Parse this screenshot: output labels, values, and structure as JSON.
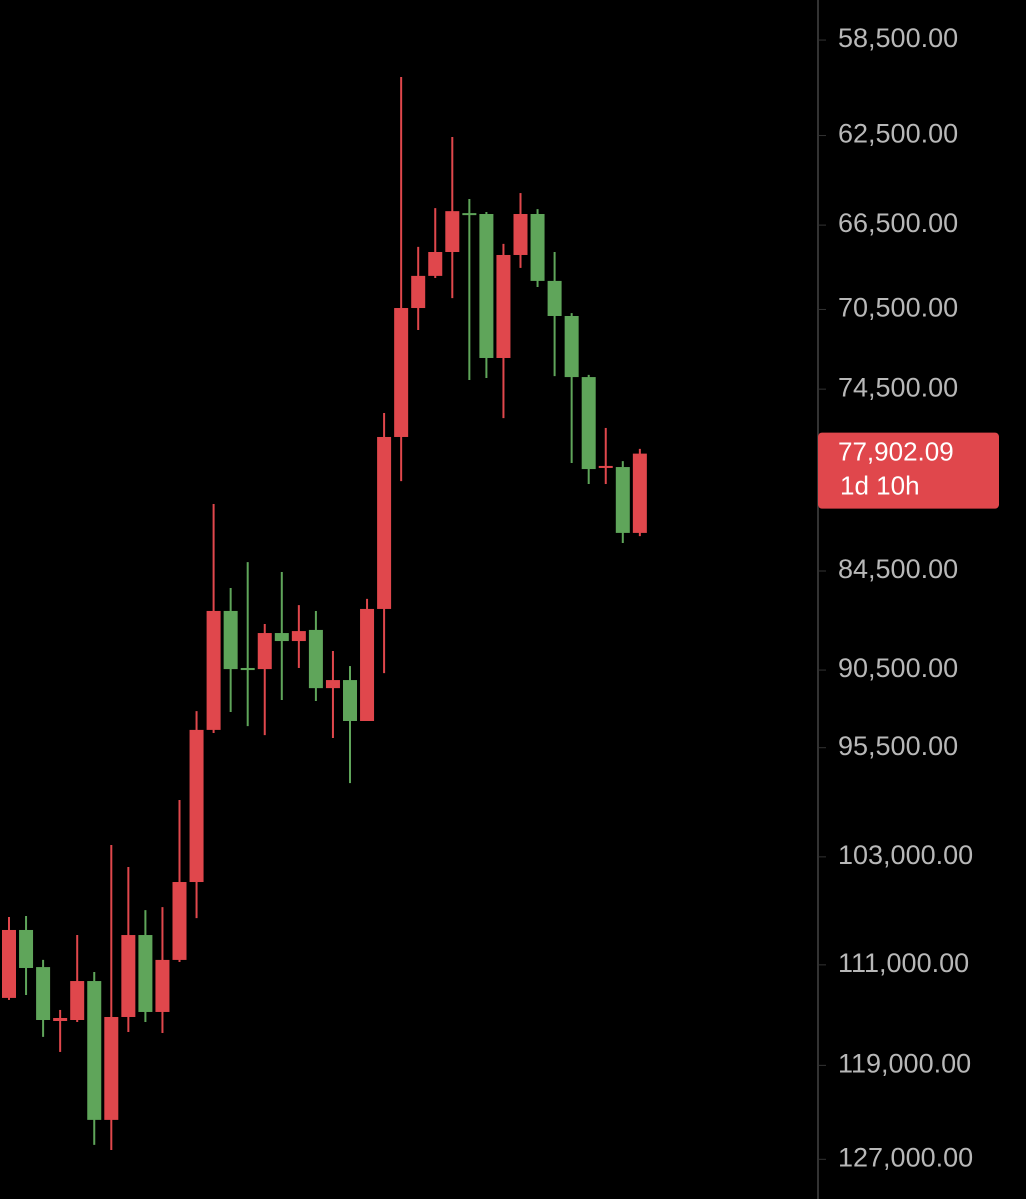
{
  "chart_data": {
    "type": "candlestick",
    "log_scale": true,
    "inverted": true,
    "up_color": "#5fa55a",
    "down_color": "#e0474c",
    "ylim": [
      56900,
      130540
    ],
    "yticks": [
      {
        "value": 58500,
        "label": "58,500.00"
      },
      {
        "value": 62500,
        "label": "62,500.00"
      },
      {
        "value": 66500,
        "label": "66,500.00"
      },
      {
        "value": 70500,
        "label": "70,500.00"
      },
      {
        "value": 74500,
        "label": "74,500.00"
      },
      {
        "value": 84500,
        "label": "84,500.00"
      },
      {
        "value": 90500,
        "label": "90,500.00"
      },
      {
        "value": 95500,
        "label": "95,500.00"
      },
      {
        "value": 103000,
        "label": "103,000.00"
      },
      {
        "value": 111000,
        "label": "111,000.00"
      },
      {
        "value": 119000,
        "label": "119,000.00"
      },
      {
        "value": 127000,
        "label": "127,000.00"
      }
    ],
    "open": [
      113570,
      108350,
      111170,
      115400,
      115320,
      112250,
      123580,
      115080,
      108730,
      114680,
      110620,
      104810,
      94330,
      86870,
      90370,
      90440,
      88210,
      88700,
      88020,
      91640,
      91130,
      93750,
      86750,
      77010,
      70430,
      68880,
      67750,
      65950,
      65990,
      72910,
      67890,
      65990,
      69120,
      70820,
      73880,
      78680,
      78630,
      82300
    ],
    "high": [
      113730,
      113340,
      116680,
      117900,
      115480,
      125740,
      126180,
      116280,
      115480,
      116360,
      110780,
      107460,
      94530,
      93170,
      94080,
      94670,
      92400,
      90370,
      92460,
      94860,
      97870,
      93750,
      90690,
      79400,
      71510,
      68980,
      69950,
      74030,
      73930,
      76010,
      68500,
      69410,
      73830,
      78410,
      79560,
      79560,
      82880,
      82480
    ],
    "low": [
      107380,
      107310,
      110620,
      114520,
      108730,
      111550,
      102160,
      103730,
      106870,
      106650,
      99020,
      93110,
      80670,
      85500,
      83980,
      87660,
      84560,
      86520,
      86870,
      89310,
      90250,
      86150,
      75740,
      60015,
      67510,
      65720,
      62565,
      65310,
      65900,
      67370,
      65040,
      65770,
      67750,
      70680,
      73770,
      76530,
      78310,
      77650
    ],
    "close": [
      108350,
      111240,
      115320,
      115160,
      112250,
      123580,
      115080,
      108730,
      114680,
      110620,
      104810,
      94330,
      86870,
      90440,
      90500,
      88210,
      88700,
      88090,
      91640,
      91130,
      93750,
      86750,
      77010,
      70430,
      68880,
      67750,
      65860,
      66040,
      72910,
      67890,
      65990,
      69120,
      70820,
      73880,
      78740,
      78570,
      82300,
      77902.09
    ],
    "last_price": {
      "value": 77902.09,
      "label": "77,902.09"
    },
    "countdown": "1d 10h"
  }
}
